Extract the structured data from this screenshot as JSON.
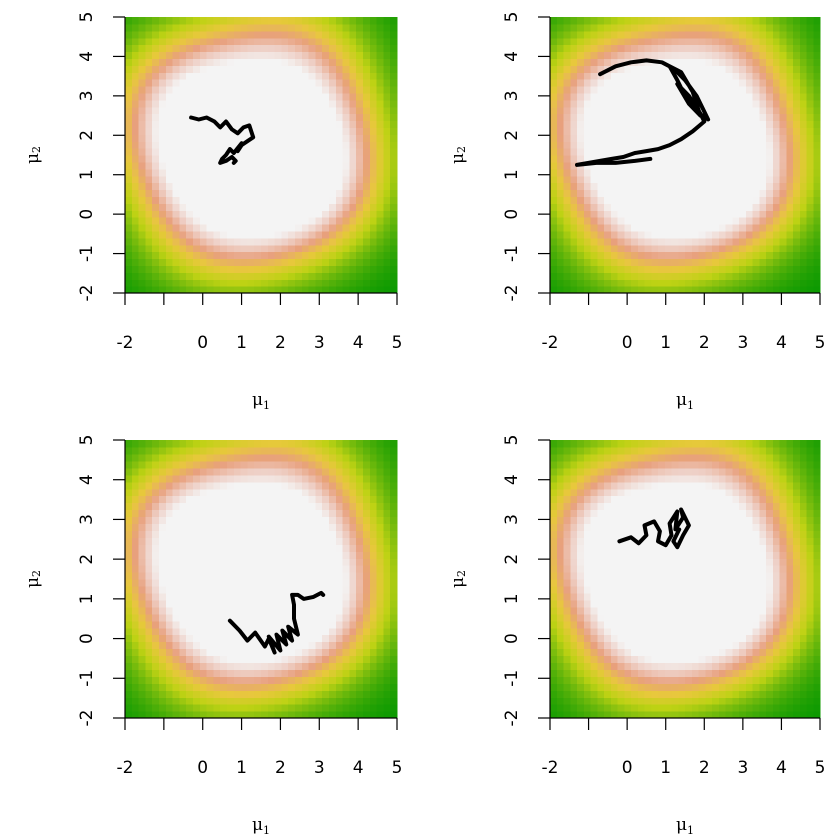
{
  "chart_data": [
    {
      "type": "line",
      "panel": "top-left",
      "xlabel": "μ1",
      "ylabel": "μ2",
      "xlabel_main": "μ",
      "xlabel_sub": "1",
      "ylabel_main": "μ",
      "ylabel_sub": "2",
      "xlim": [
        -2,
        5
      ],
      "ylim": [
        -2,
        5
      ],
      "xticks": [
        "-2",
        "0",
        "1",
        "2",
        "3",
        "4",
        "5"
      ],
      "yticks": [
        "-2",
        "-1",
        "0",
        "1",
        "2",
        "3",
        "4",
        "5"
      ],
      "background": "density heatmap: green at (-2,-2) and (5,5), pink/white elsewhere",
      "x": [
        -0.3,
        -0.1,
        0.1,
        0.3,
        0.45,
        0.6,
        0.75,
        0.9,
        1.05,
        1.2,
        1.3,
        1.15,
        1.0,
        0.9,
        1.0,
        0.8,
        0.7,
        0.6,
        0.5,
        0.45,
        0.6,
        0.75,
        0.85,
        0.8
      ],
      "y": [
        2.45,
        2.4,
        2.45,
        2.35,
        2.2,
        2.35,
        2.15,
        2.05,
        2.2,
        2.25,
        1.95,
        1.85,
        1.75,
        1.6,
        1.8,
        1.55,
        1.65,
        1.5,
        1.4,
        1.3,
        1.35,
        1.45,
        1.35,
        1.3
      ]
    },
    {
      "type": "line",
      "panel": "top-right",
      "xlabel": "μ1",
      "ylabel": "μ2",
      "xlabel_main": "μ",
      "xlabel_sub": "1",
      "ylabel_main": "μ",
      "ylabel_sub": "2",
      "xlim": [
        -2,
        5
      ],
      "ylim": [
        -2,
        5
      ],
      "xticks": [
        "-2",
        "0",
        "1",
        "2",
        "3",
        "4",
        "5"
      ],
      "yticks": [
        "-2",
        "-1",
        "0",
        "1",
        "2",
        "3",
        "4",
        "5"
      ],
      "background": "density heatmap: green at (-2,-2) and (5,5), pink/white elsewhere",
      "x": [
        -0.7,
        -0.3,
        0.1,
        0.5,
        0.9,
        1.2,
        1.5,
        1.8,
        2.0,
        2.1,
        1.8,
        1.5,
        1.3,
        1.1,
        1.4,
        1.7,
        1.9,
        1.6,
        1.3,
        1.6,
        1.9,
        2.0,
        1.7,
        1.4,
        1.1,
        0.8,
        0.5,
        0.2,
        -0.1,
        -0.4,
        -0.7,
        -1.0,
        -1.3,
        -0.8,
        -0.3,
        0.2,
        0.6
      ],
      "y": [
        3.55,
        3.75,
        3.85,
        3.9,
        3.85,
        3.7,
        3.4,
        3.0,
        2.6,
        2.4,
        2.6,
        3.0,
        3.4,
        3.75,
        3.6,
        3.1,
        2.5,
        2.8,
        3.3,
        3.0,
        2.55,
        2.35,
        2.1,
        1.9,
        1.75,
        1.65,
        1.6,
        1.55,
        1.45,
        1.4,
        1.35,
        1.3,
        1.25,
        1.3,
        1.3,
        1.35,
        1.4
      ]
    },
    {
      "type": "line",
      "panel": "bottom-left",
      "xlabel": "μ1",
      "ylabel": "μ2",
      "xlabel_main": "μ",
      "xlabel_sub": "1",
      "ylabel_main": "μ",
      "ylabel_sub": "2",
      "xlim": [
        -2,
        5
      ],
      "ylim": [
        -2,
        5
      ],
      "xticks": [
        "-2",
        "0",
        "1",
        "2",
        "3",
        "4",
        "5"
      ],
      "yticks": [
        "-2",
        "-1",
        "0",
        "1",
        "2",
        "3",
        "4",
        "5"
      ],
      "background": "density heatmap: green at (-2,-2) and (5,5), pink/white elsewhere",
      "x": [
        0.7,
        0.95,
        1.15,
        1.35,
        1.6,
        1.7,
        1.85,
        1.7,
        2.0,
        1.9,
        2.15,
        2.05,
        2.3,
        2.2,
        2.45,
        2.35,
        2.35,
        2.3,
        2.45,
        2.6,
        2.85,
        3.05,
        3.1
      ],
      "y": [
        0.45,
        0.2,
        -0.05,
        0.15,
        -0.2,
        0.0,
        -0.35,
        0.05,
        -0.3,
        0.1,
        -0.15,
        0.2,
        -0.05,
        0.3,
        0.1,
        0.5,
        0.85,
        1.1,
        1.1,
        1.0,
        1.05,
        1.15,
        1.1
      ]
    },
    {
      "type": "line",
      "panel": "bottom-right",
      "xlabel": "μ1",
      "ylabel": "μ2",
      "xlabel_main": "μ",
      "xlabel_sub": "1",
      "ylabel_main": "μ",
      "ylabel_sub": "2",
      "xlim": [
        -2,
        5
      ],
      "ylim": [
        -2,
        5
      ],
      "xticks": [
        "-2",
        "0",
        "1",
        "2",
        "3",
        "4",
        "5"
      ],
      "yticks": [
        "-2",
        "-1",
        "0",
        "1",
        "2",
        "3",
        "4",
        "5"
      ],
      "background": "density heatmap: green at (-2,-2) and (5,5), pink/white elsewhere",
      "x": [
        -0.2,
        0.1,
        0.3,
        0.5,
        0.45,
        0.7,
        0.85,
        0.8,
        1.0,
        1.15,
        1.1,
        1.3,
        1.25,
        1.45,
        1.4,
        1.6,
        1.45,
        1.3,
        1.2,
        1.35
      ],
      "y": [
        2.45,
        2.55,
        2.4,
        2.6,
        2.85,
        2.95,
        2.7,
        2.45,
        2.35,
        2.6,
        2.9,
        3.2,
        2.75,
        3.05,
        3.25,
        2.85,
        2.6,
        2.3,
        2.45,
        2.75
      ]
    }
  ]
}
